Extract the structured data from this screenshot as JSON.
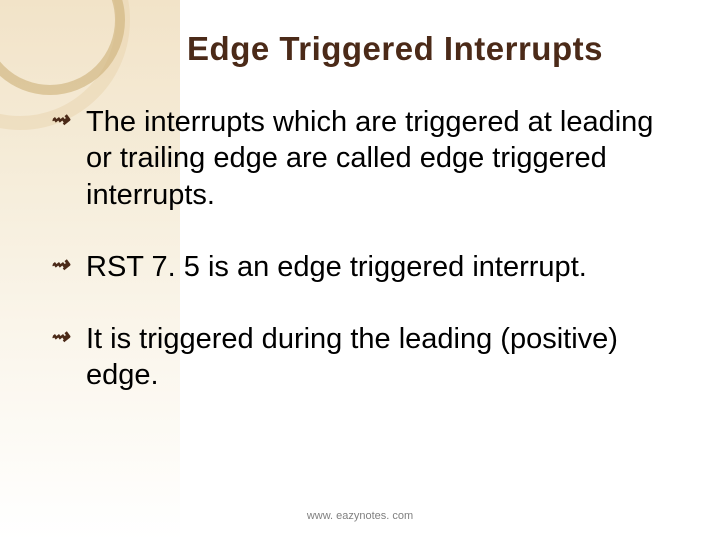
{
  "slide": {
    "title": "Edge Triggered Interrupts",
    "title_color": "#4b2a18",
    "title_fontsize": 33,
    "bullets": [
      "The interrupts which are triggered at leading or trailing edge are called edge triggered interrupts.",
      "RST 7. 5 is an edge triggered interrupt.",
      "It is triggered during the leading (positive) edge."
    ],
    "bullet_fontsize": 29,
    "bullet_color": "#000000",
    "bullet_marker_color": "#4b2a18",
    "footer": "www. eazynotes. com",
    "footer_color": "#808080",
    "footer_fontsize": 11,
    "decoration": {
      "gradient_from": "#f2e3c8",
      "gradient_to": "#ffffff",
      "circle_big_color": "#e9d6b0",
      "circle_small_color": "#cdb078"
    }
  }
}
